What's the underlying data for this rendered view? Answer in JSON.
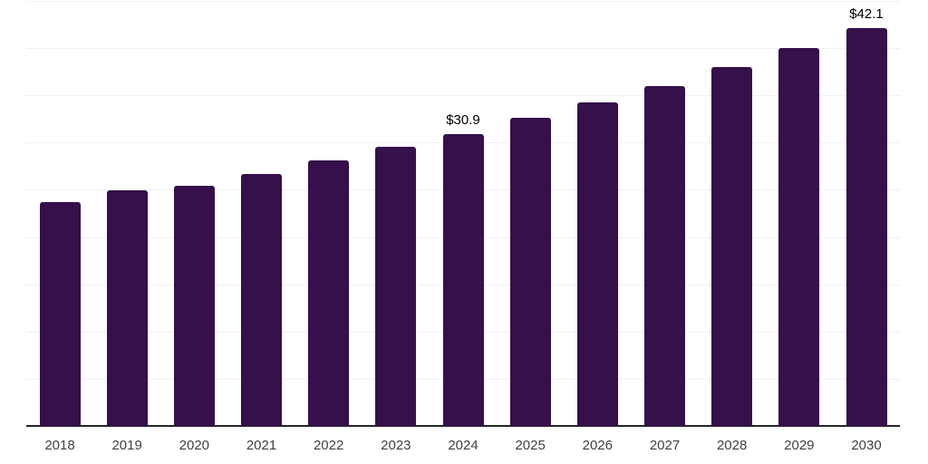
{
  "chart_data": {
    "type": "bar",
    "title": "",
    "xlabel": "",
    "ylabel": "",
    "categories": [
      "2018",
      "2019",
      "2020",
      "2021",
      "2022",
      "2023",
      "2024",
      "2025",
      "2026",
      "2027",
      "2028",
      "2029",
      "2030"
    ],
    "values": [
      23.7,
      24.9,
      25.4,
      26.7,
      28.1,
      29.6,
      30.9,
      32.6,
      34.3,
      36.0,
      38.0,
      40.0,
      42.1
    ],
    "data_labels": {
      "2024": "$30.9",
      "2030": "$42.1"
    },
    "ylim": [
      0,
      45
    ],
    "gridline_step": 5,
    "grid": "horizontal light gridlines, no y-axis tick labels",
    "legend": "none",
    "colors": {
      "bar": "#35104B",
      "gridline": "#F0F0F0",
      "axis_line": "#262626",
      "tick_label": "#404040",
      "data_label": "#000000",
      "background": "#FFFFFF"
    }
  }
}
